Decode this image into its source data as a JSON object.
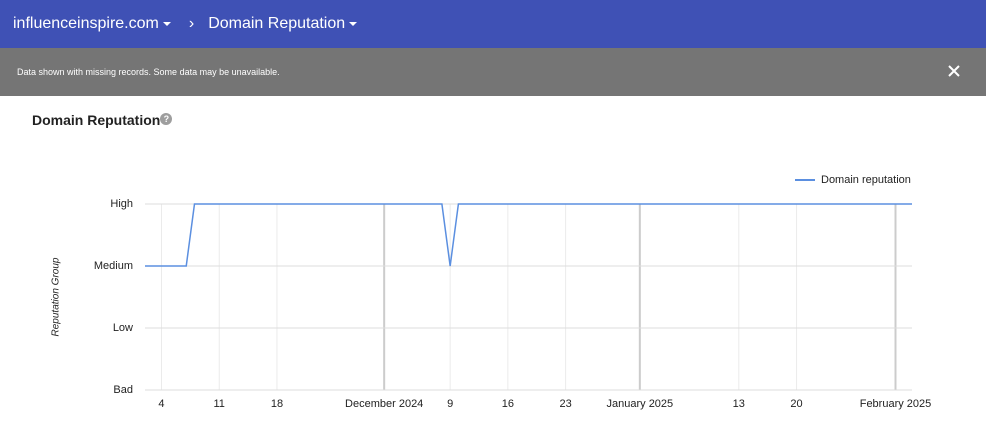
{
  "header": {
    "domain": "influenceinspire.com",
    "page": "Domain Reputation"
  },
  "banner": {
    "message": "Data shown with missing records. Some data may be unavailable."
  },
  "section": {
    "title": "Domain Reputation"
  },
  "chart_data": {
    "type": "line",
    "ylabel": "Reputation Group",
    "x": [
      "2024-11-02",
      "2024-11-07",
      "2024-11-08",
      "2024-12-08",
      "2024-12-09",
      "2024-12-10",
      "2025-02-03"
    ],
    "series": [
      {
        "name": "Domain reputation",
        "color": "#5b8fe0",
        "values": [
          2,
          2,
          3,
          3,
          2,
          3,
          3
        ]
      }
    ],
    "xlim": [
      "2024-11-02",
      "2025-02-03"
    ],
    "xticks": [
      {
        "value": "2024-11-04",
        "label": "4"
      },
      {
        "value": "2024-11-11",
        "label": "11"
      },
      {
        "value": "2024-11-18",
        "label": "18"
      },
      {
        "value": "2024-12-01",
        "label": "December 2024"
      },
      {
        "value": "2024-12-09",
        "label": "9"
      },
      {
        "value": "2024-12-16",
        "label": "16"
      },
      {
        "value": "2024-12-23",
        "label": "23"
      },
      {
        "value": "2025-01-01",
        "label": "January 2025"
      },
      {
        "value": "2025-01-13",
        "label": "13"
      },
      {
        "value": "2025-01-20",
        "label": "20"
      },
      {
        "value": "2025-02-01",
        "label": "February 2025"
      }
    ],
    "ylim": [
      0,
      3
    ],
    "yticks": [
      {
        "value": 0,
        "label": "Bad"
      },
      {
        "value": 1,
        "label": "Low"
      },
      {
        "value": 2,
        "label": "Medium"
      },
      {
        "value": 3,
        "label": "High"
      }
    ],
    "grid": true,
    "legend": "top-right"
  }
}
